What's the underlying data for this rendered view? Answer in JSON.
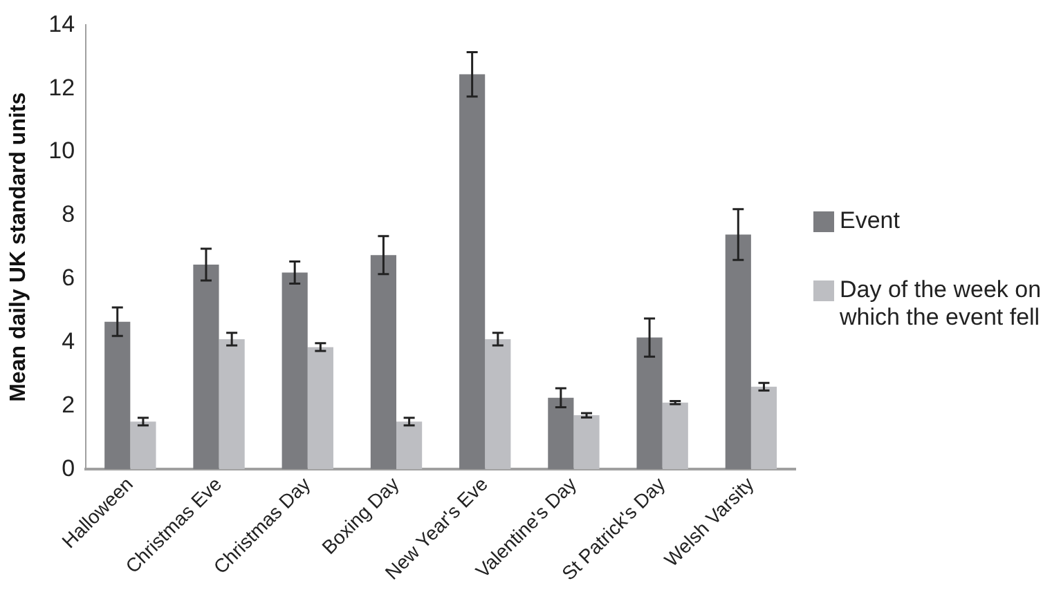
{
  "chart_data": {
    "type": "bar",
    "ylabel": "Mean daily UK standard units",
    "categories": [
      "Halloween",
      "Christmas Eve",
      "Christmas Day",
      "Boxing Day",
      "New Year's Eve",
      "Valentine's Day",
      "St Patrick's Day",
      "Welsh Varsity"
    ],
    "series": [
      {
        "name": "Event",
        "color": "#7b7c80",
        "values": [
          4.65,
          6.45,
          6.2,
          6.75,
          12.45,
          2.25,
          4.15,
          7.4
        ],
        "errors": [
          0.45,
          0.5,
          0.35,
          0.6,
          0.7,
          0.3,
          0.6,
          0.8
        ]
      },
      {
        "name": "Day of the week on which the event fell",
        "color": "#bdbec2",
        "values": [
          1.5,
          4.1,
          3.85,
          1.5,
          4.1,
          1.7,
          2.1,
          2.6
        ],
        "errors": [
          0.12,
          0.2,
          0.12,
          0.12,
          0.2,
          0.07,
          0.05,
          0.12
        ]
      }
    ],
    "ylim": [
      0,
      14
    ],
    "yticks": [
      0,
      2,
      4,
      6,
      8,
      10,
      12,
      14
    ],
    "grid": false,
    "legend": "right"
  }
}
